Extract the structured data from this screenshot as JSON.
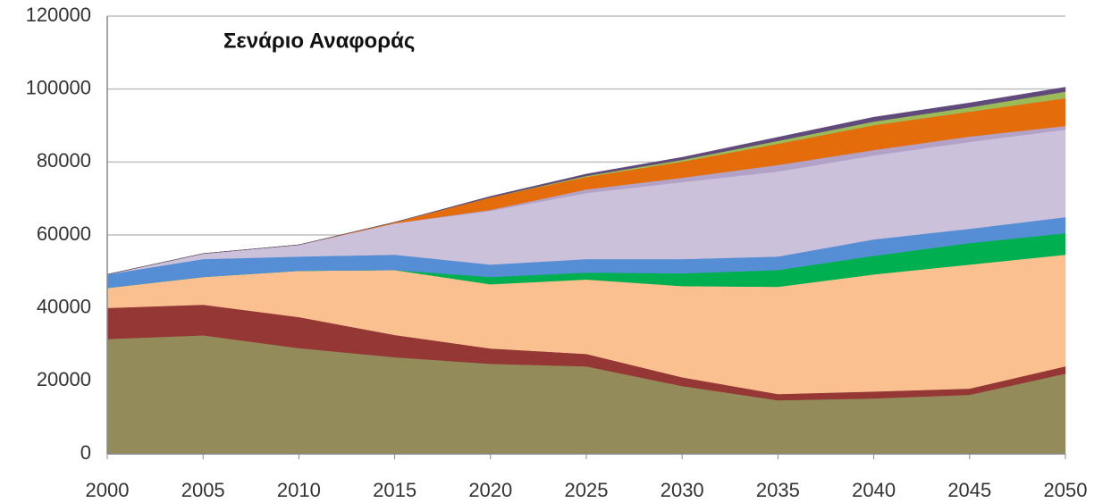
{
  "chart_data": {
    "type": "stacked_area",
    "title": "Σενάριο Αναφοράς",
    "x": [
      2000,
      2005,
      2010,
      2015,
      2020,
      2025,
      2030,
      2035,
      2040,
      2045,
      2050
    ],
    "xlim": [
      2000,
      2050
    ],
    "xticks": [
      2000,
      2005,
      2010,
      2015,
      2020,
      2025,
      2030,
      2035,
      2040,
      2045,
      2050
    ],
    "ylim": [
      0,
      120000
    ],
    "yticks": [
      0,
      20000,
      40000,
      60000,
      80000,
      100000,
      120000
    ],
    "grid": true,
    "series": [
      {
        "color": "#938b5a",
        "values": [
          31500,
          32500,
          29000,
          26500,
          24700,
          24000,
          18600,
          14700,
          15200,
          16200,
          22000
        ]
      },
      {
        "color": "#953735",
        "values": [
          8500,
          8400,
          8500,
          6100,
          4200,
          3400,
          2400,
          1700,
          1900,
          1700,
          2000
        ]
      },
      {
        "color": "#fac090",
        "values": [
          5500,
          7600,
          12700,
          17800,
          17600,
          20400,
          25000,
          29400,
          32100,
          34000,
          30600
        ]
      },
      {
        "color": "#00b050",
        "values": [
          0,
          0,
          0,
          0,
          2000,
          1900,
          3500,
          4600,
          5100,
          5900,
          5900
        ]
      },
      {
        "color": "#558ed5",
        "values": [
          3700,
          4900,
          3900,
          4200,
          3400,
          3700,
          3900,
          3700,
          4500,
          3900,
          4400
        ]
      },
      {
        "color": "#ccc1da",
        "values": [
          0,
          1500,
          3200,
          8600,
          14700,
          18100,
          21100,
          23300,
          23000,
          23800,
          24000
        ]
      },
      {
        "color": "#b3a2c7",
        "values": [
          0,
          0,
          0,
          0,
          300,
          1000,
          1200,
          1800,
          1500,
          1500,
          1000
        ]
      },
      {
        "color": "#e46c0a",
        "values": [
          0,
          0,
          0,
          300,
          3400,
          3400,
          4400,
          5800,
          6800,
          6800,
          7600
        ]
      },
      {
        "color": "#9bbb59",
        "values": [
          0,
          0,
          0,
          0,
          0,
          300,
          500,
          800,
          1000,
          1200,
          1800
        ]
      },
      {
        "color": "#604a7b",
        "values": [
          0,
          0,
          0,
          0,
          300,
          500,
          700,
          1000,
          1200,
          1200,
          1200
        ]
      }
    ]
  }
}
